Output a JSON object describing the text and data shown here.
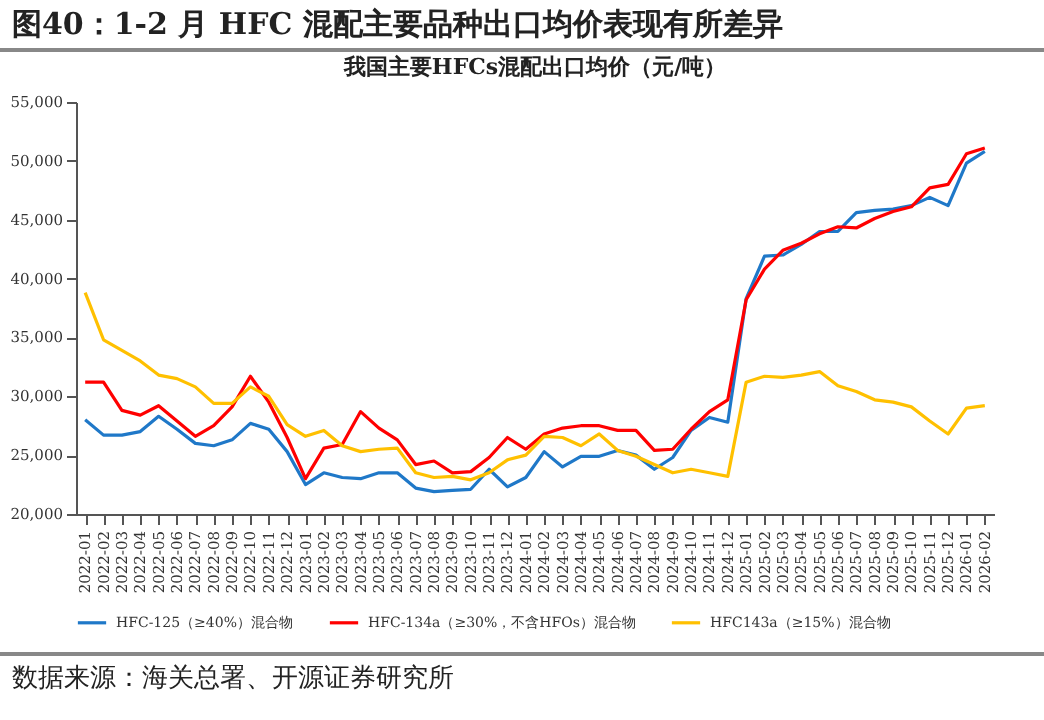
{
  "chart_data": {
    "type": "line",
    "title": "图40：1-2 月 HFC 混配主要品种出口均价表现有所差异",
    "subtitle": "我国主要HFCs混配出口均价（元/吨）",
    "annotations": [
      "数据来源：海关总署、开源证券研究所"
    ],
    "categories": [
      "2022-01",
      "2022-02",
      "2022-03",
      "2022-04",
      "2022-05",
      "2022-06",
      "2022-07",
      "2022-08",
      "2022-09",
      "2022-10",
      "2022-11",
      "2022-12",
      "2023-01",
      "2023-02",
      "2023-03",
      "2023-04",
      "2023-05",
      "2023-06",
      "2023-07",
      "2023-08",
      "2023-09",
      "2023-10",
      "2023-11",
      "2023-12",
      "2024-01",
      "2024-02",
      "2024-03",
      "2024-04",
      "2024-05",
      "2024-06",
      "2024-07",
      "2024-08",
      "2024-09",
      "2024-10",
      "2024-11",
      "2024-12",
      "2025-01",
      "2025-02",
      "2025-03",
      "2025-04",
      "2025-05",
      "2025-06",
      "2025-07",
      "2025-08",
      "2025-09",
      "2025-10",
      "2025-11",
      "2025-12",
      "2026-01",
      "2026-02"
    ],
    "series": [
      {
        "name": "HFC-125（≥40%）混合物",
        "color": "#1f78c8",
        "values": [
          28000,
          26700,
          26700,
          27000,
          28300,
          27200,
          26000,
          25800,
          26300,
          27700,
          27200,
          25300,
          22500,
          23500,
          23100,
          23000,
          23500,
          23500,
          22200,
          21900,
          22000,
          22100,
          23800,
          22300,
          23100,
          25300,
          24000,
          24900,
          24900,
          25400,
          25000,
          23800,
          24800,
          27100,
          28200,
          27800,
          38300,
          41900,
          42000,
          42900,
          44000,
          44000,
          45600,
          45800,
          45900,
          46200,
          46900,
          46200,
          49800,
          50800
        ]
      },
      {
        "name": "HFC-134a（≥30%，不含HFOs）混合物",
        "color": "#ff0000",
        "values": [
          31200,
          31200,
          28800,
          28400,
          29200,
          27900,
          26600,
          27500,
          29100,
          31700,
          29500,
          26500,
          23000,
          25600,
          25900,
          28700,
          27300,
          26300,
          24200,
          24500,
          23500,
          23600,
          24800,
          26500,
          25500,
          26800,
          27300,
          27500,
          27500,
          27100,
          27100,
          25400,
          25500,
          27200,
          28700,
          29700,
          38200,
          40800,
          42400,
          43000,
          43800,
          44400,
          44300,
          45100,
          45700,
          46100,
          47700,
          48000,
          50600,
          51100
        ]
      },
      {
        "name": "HFC143a（≥15%）混合物",
        "color": "#ffc000",
        "values": [
          38800,
          34800,
          33900,
          33000,
          31800,
          31500,
          30800,
          29400,
          29400,
          30800,
          30000,
          27600,
          26600,
          27100,
          25800,
          25300,
          25500,
          25600,
          23500,
          23100,
          23200,
          22900,
          23500,
          24600,
          25000,
          26600,
          26500,
          25800,
          26800,
          25400,
          24900,
          24200,
          23500,
          23800,
          23500,
          23200,
          31200,
          31700,
          31600,
          31800,
          32100,
          30900,
          30400,
          29700,
          29500,
          29100,
          27900,
          26800,
          29000,
          29200
        ]
      }
    ],
    "ylim": [
      20000,
      55000
    ],
    "yticks": [
      {
        "value": 20000,
        "label": "20,000"
      },
      {
        "value": 25000,
        "label": "25,000"
      },
      {
        "value": 30000,
        "label": "30,000"
      },
      {
        "value": 35000,
        "label": "35,000"
      },
      {
        "value": 40000,
        "label": "40,000"
      },
      {
        "value": 45000,
        "label": "45,000"
      },
      {
        "value": 50000,
        "label": "50,000"
      },
      {
        "value": 55000,
        "label": "55,000"
      }
    ],
    "grid": false,
    "legend": "bottom",
    "line_style": "solid"
  }
}
